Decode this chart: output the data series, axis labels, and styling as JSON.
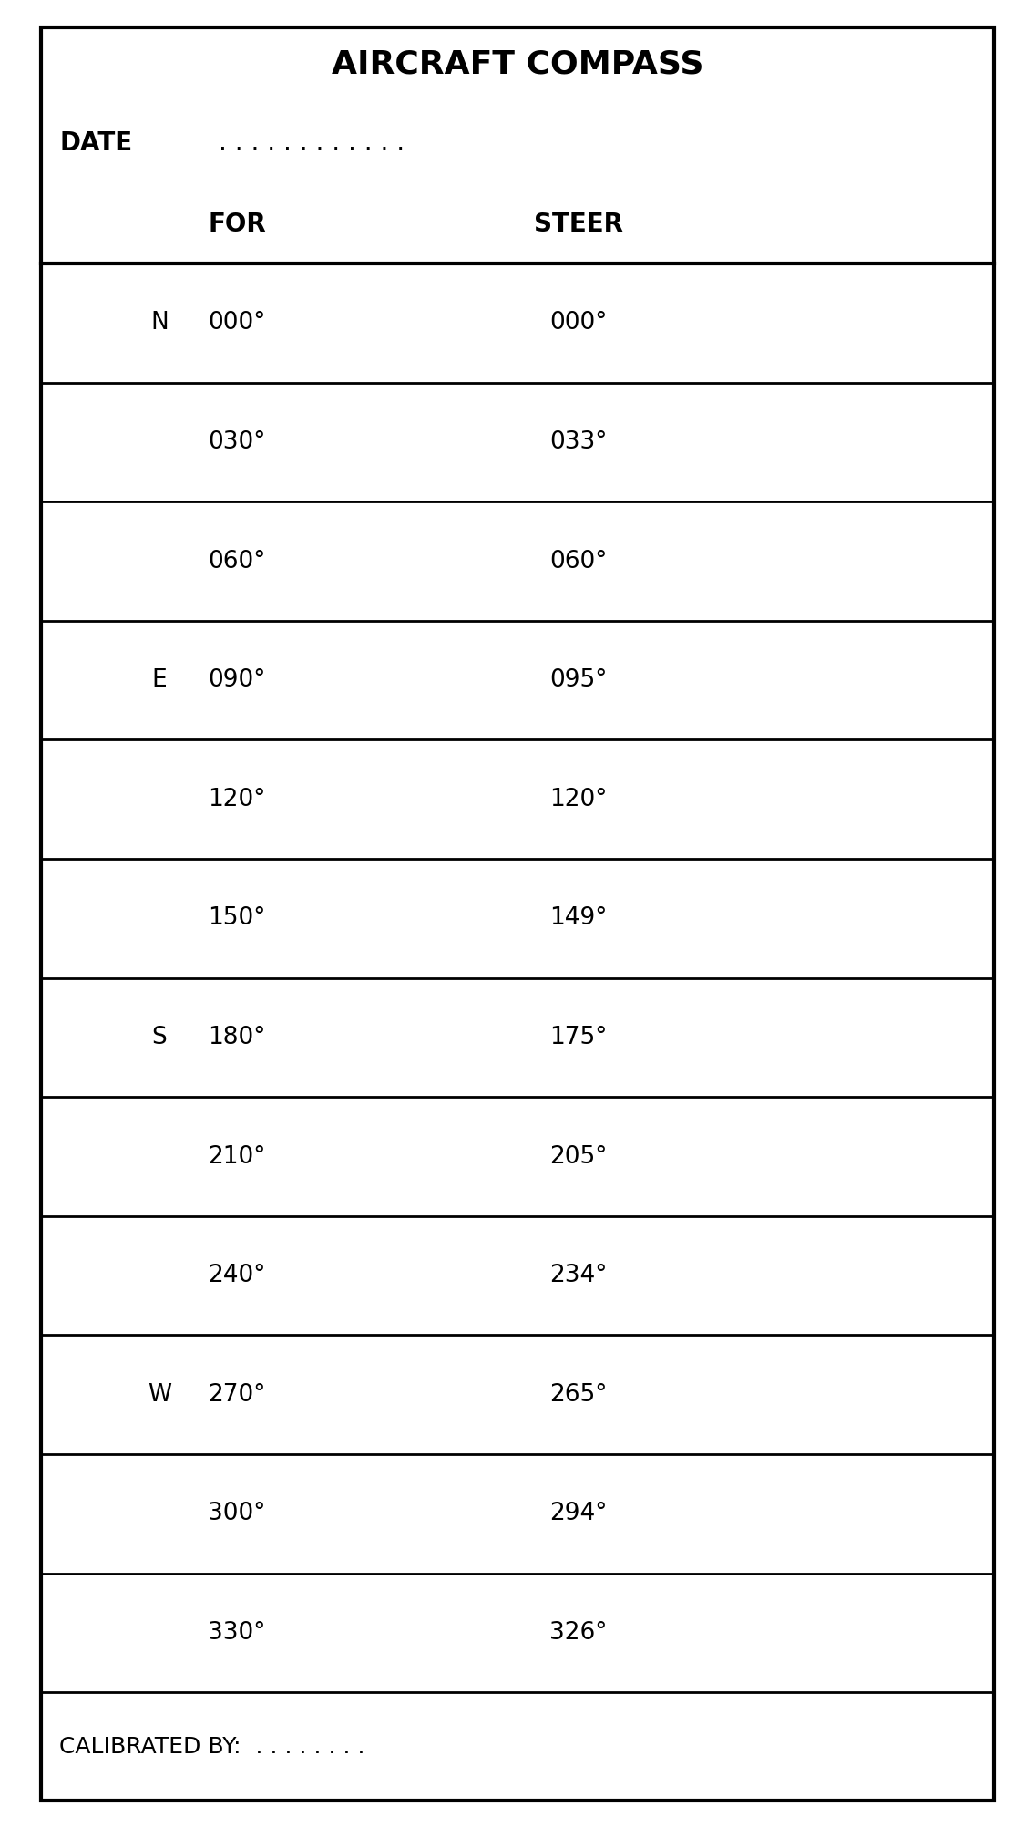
{
  "title": "AIRCRAFT COMPASS",
  "date_label": "DATE",
  "date_dots": ". . . . . . . . . . . .",
  "col_for": "FOR",
  "col_steer": "STEER",
  "rows": [
    {
      "direction": "N",
      "for": "000°",
      "steer": "000°"
    },
    {
      "direction": "",
      "for": "030°",
      "steer": "033°"
    },
    {
      "direction": "",
      "for": "060°",
      "steer": "060°"
    },
    {
      "direction": "E",
      "for": "090°",
      "steer": "095°"
    },
    {
      "direction": "",
      "for": "120°",
      "steer": "120°"
    },
    {
      "direction": "",
      "for": "150°",
      "steer": "149°"
    },
    {
      "direction": "S",
      "for": "180°",
      "steer": "175°"
    },
    {
      "direction": "",
      "for": "210°",
      "steer": "205°"
    },
    {
      "direction": "",
      "for": "240°",
      "steer": "234°"
    },
    {
      "direction": "W",
      "for": "270°",
      "steer": "265°"
    },
    {
      "direction": "",
      "for": "300°",
      "steer": "294°"
    },
    {
      "direction": "",
      "for": "330°",
      "steer": "326°"
    }
  ],
  "calibrated_label": "CALIBRATED BY:",
  "calibrated_dots": ". . . . . . . .",
  "bg_color": "#ffffff",
  "text_color": "#000000",
  "border_color": "#000000",
  "fig_width": 11.36,
  "fig_height": 20.05,
  "dpi": 100
}
